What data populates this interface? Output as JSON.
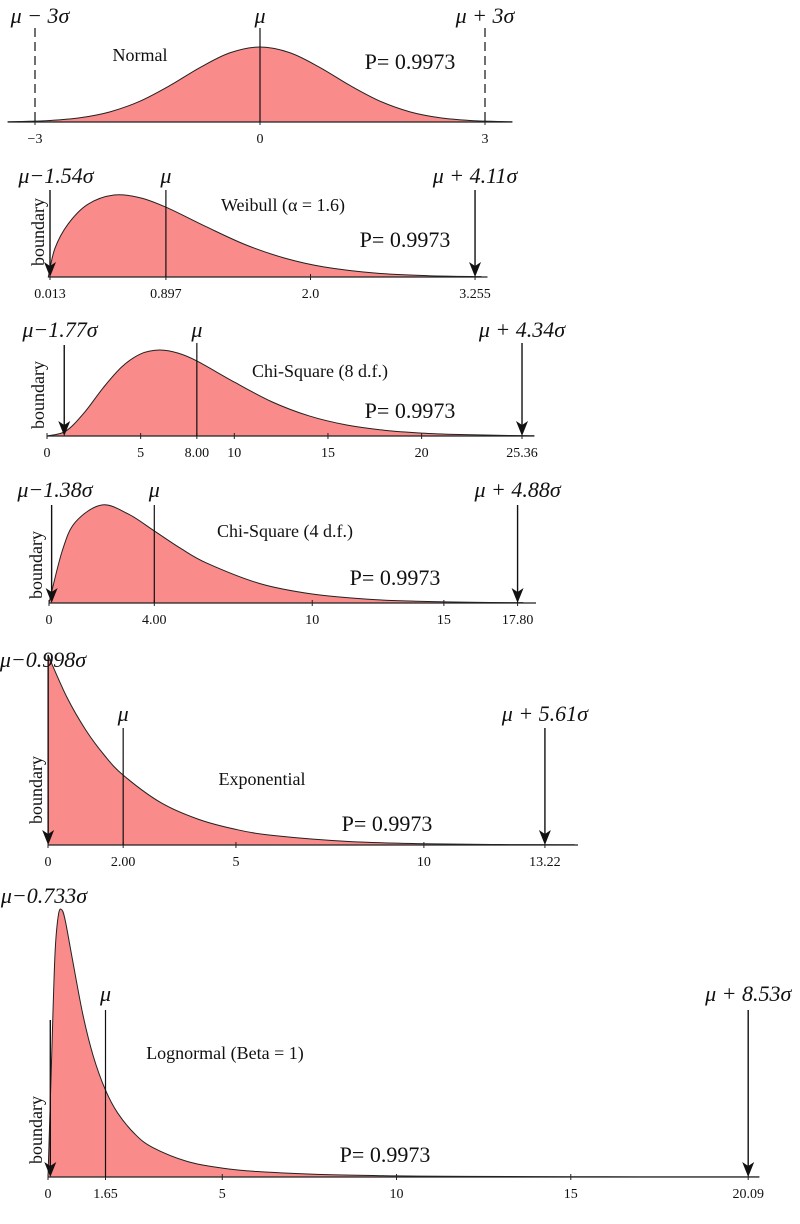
{
  "chart_data": [
    {
      "type": "area",
      "title": "Normal",
      "annotation": "P= 0.9973",
      "color": "#f98b8b",
      "bound_style": "dashed",
      "lower": {
        "label": "μ − 3σ",
        "x": -3
      },
      "mean": {
        "label": "μ",
        "x": 0
      },
      "upper": {
        "label": "μ + 3σ",
        "x": 3
      },
      "xlim": [
        -3.36,
        3.36
      ],
      "xticks": [
        {
          "value": -3,
          "label": "−3"
        },
        0,
        3
      ],
      "x": [
        -3.36,
        -3.2,
        -2.8,
        -2.4,
        -2.0,
        -1.6,
        -1.2,
        -0.8,
        -0.4,
        0,
        0.4,
        0.8,
        1.2,
        1.6,
        2.0,
        2.4,
        2.8,
        3.2,
        3.36
      ],
      "values": [
        0.0014,
        0.0024,
        0.0079,
        0.0224,
        0.054,
        0.1109,
        0.1942,
        0.2897,
        0.3683,
        0.3989,
        0.3683,
        0.2897,
        0.1942,
        0.1109,
        0.054,
        0.0224,
        0.0079,
        0.0024,
        0.0014
      ]
    },
    {
      "type": "area",
      "title": "Weibull (α = 1.6)",
      "annotation": "P= 0.9973",
      "color": "#f98b8b",
      "bound_style": "arrow",
      "boundary_label": "boundary",
      "lower": {
        "label": "μ−1.54σ",
        "x": 0.013
      },
      "mean": {
        "label": "μ",
        "x": 0.897
      },
      "upper": {
        "label": "μ + 4.11σ",
        "x": 3.255
      },
      "xlim": [
        0,
        3.35
      ],
      "xticks": [
        0.013,
        0.897,
        {
          "value": 2,
          "label": "2.0"
        },
        3.255
      ],
      "x": [
        0,
        0.05,
        0.15,
        0.3,
        0.5,
        0.7,
        0.9,
        1.2,
        1.5,
        1.8,
        2.1,
        2.5,
        2.9,
        3.3
      ],
      "values": [
        0,
        0.263,
        0.489,
        0.672,
        0.759,
        0.734,
        0.645,
        0.468,
        0.301,
        0.176,
        0.094,
        0.036,
        0.012,
        0.004
      ]
    },
    {
      "type": "area",
      "title": "Chi-Square (8 d.f.)",
      "annotation": "P= 0.9973",
      "color": "#f98b8b",
      "bound_style": "arrow",
      "boundary_label": "boundary",
      "lower": {
        "label": "μ−1.77σ",
        "x": 0.92
      },
      "mean": {
        "label": "μ",
        "x": 8
      },
      "upper": {
        "label": "μ + 4.34σ",
        "x": 25.36
      },
      "xlim": [
        0,
        26
      ],
      "xticks": [
        0,
        5,
        {
          "value": 8,
          "label": "8.00"
        },
        10,
        15,
        20,
        25.36
      ],
      "x": [
        0,
        1,
        2,
        3,
        4,
        5,
        6,
        7,
        8,
        10,
        12,
        14,
        16,
        18,
        20,
        22,
        24,
        26
      ],
      "values": [
        0,
        0.0063,
        0.0307,
        0.0628,
        0.0902,
        0.1069,
        0.112,
        0.1079,
        0.0977,
        0.0702,
        0.0446,
        0.0261,
        0.0143,
        0.0075,
        0.0038,
        0.0019,
        0.0009,
        0.0004
      ]
    },
    {
      "type": "area",
      "title": "Chi-Square (4 d.f.)",
      "annotation": "P= 0.9973",
      "color": "#f98b8b",
      "bound_style": "arrow",
      "boundary_label": "boundary",
      "lower": {
        "label": "μ−1.38σ",
        "x": 0.1
      },
      "mean": {
        "label": "μ",
        "x": 4
      },
      "upper": {
        "label": "μ + 4.88σ",
        "x": 17.8
      },
      "xlim": [
        0,
        18.5
      ],
      "xticks": [
        0,
        {
          "value": 4,
          "label": "4.00"
        },
        10,
        15,
        {
          "value": 17.8,
          "label": "17.80"
        }
      ],
      "x": [
        0,
        0.5,
        1,
        2,
        3,
        4,
        5,
        6,
        8,
        10,
        12,
        14,
        16,
        18
      ],
      "values": [
        0,
        0.0974,
        0.1516,
        0.1839,
        0.1673,
        0.1353,
        0.1026,
        0.0747,
        0.0366,
        0.0168,
        0.0074,
        0.0032,
        0.0013,
        0.0006
      ]
    },
    {
      "type": "area",
      "title": "Exponential",
      "annotation": "P= 0.9973",
      "color": "#f98b8b",
      "bound_style": "arrow",
      "boundary_label": "boundary",
      "lower": {
        "label": "μ−0.998σ",
        "x": 0.004
      },
      "mean": {
        "label": "μ",
        "x": 2
      },
      "upper": {
        "label": "μ + 5.61σ",
        "x": 13.22
      },
      "xlim": [
        0,
        14.1
      ],
      "xticks": [
        0,
        {
          "value": 2,
          "label": "2.00"
        },
        5,
        10,
        13.22
      ],
      "x": [
        0,
        0.5,
        1,
        1.5,
        2,
        3,
        4,
        5,
        6,
        8,
        10,
        12,
        14
      ],
      "values": [
        0.5,
        0.3894,
        0.3033,
        0.2362,
        0.1839,
        0.1116,
        0.0677,
        0.041,
        0.0249,
        0.0092,
        0.0034,
        0.0012,
        0.0005
      ]
    },
    {
      "type": "area",
      "title": "Lognormal (Beta = 1)",
      "annotation": "P= 0.9973",
      "color": "#f98b8b",
      "bound_style": "arrow",
      "boundary_label": "boundary",
      "lower": {
        "label": "μ−0.733σ",
        "x": 0.066
      },
      "mean": {
        "label": "μ",
        "x": 1.65
      },
      "upper": {
        "label": "μ + 8.53σ",
        "x": 20.09
      },
      "xlim": [
        0,
        20.4
      ],
      "xticks": [
        0,
        1.65,
        5,
        10,
        15,
        20.09
      ],
      "x": [
        0,
        0.1,
        0.2,
        0.3,
        0.4,
        0.5,
        0.7,
        1,
        1.3,
        1.65,
        2,
        2.5,
        3,
        4,
        5,
        6,
        8,
        10,
        12,
        15,
        18,
        20.4
      ],
      "values": [
        0,
        0.2816,
        0.5463,
        0.6441,
        0.6554,
        0.6275,
        0.5348,
        0.3989,
        0.2965,
        0.2133,
        0.1569,
        0.1049,
        0.0727,
        0.0381,
        0.0219,
        0.0134,
        0.0057,
        0.0028,
        0.0015,
        0.0007,
        0.0003,
        0.0002
      ]
    }
  ]
}
